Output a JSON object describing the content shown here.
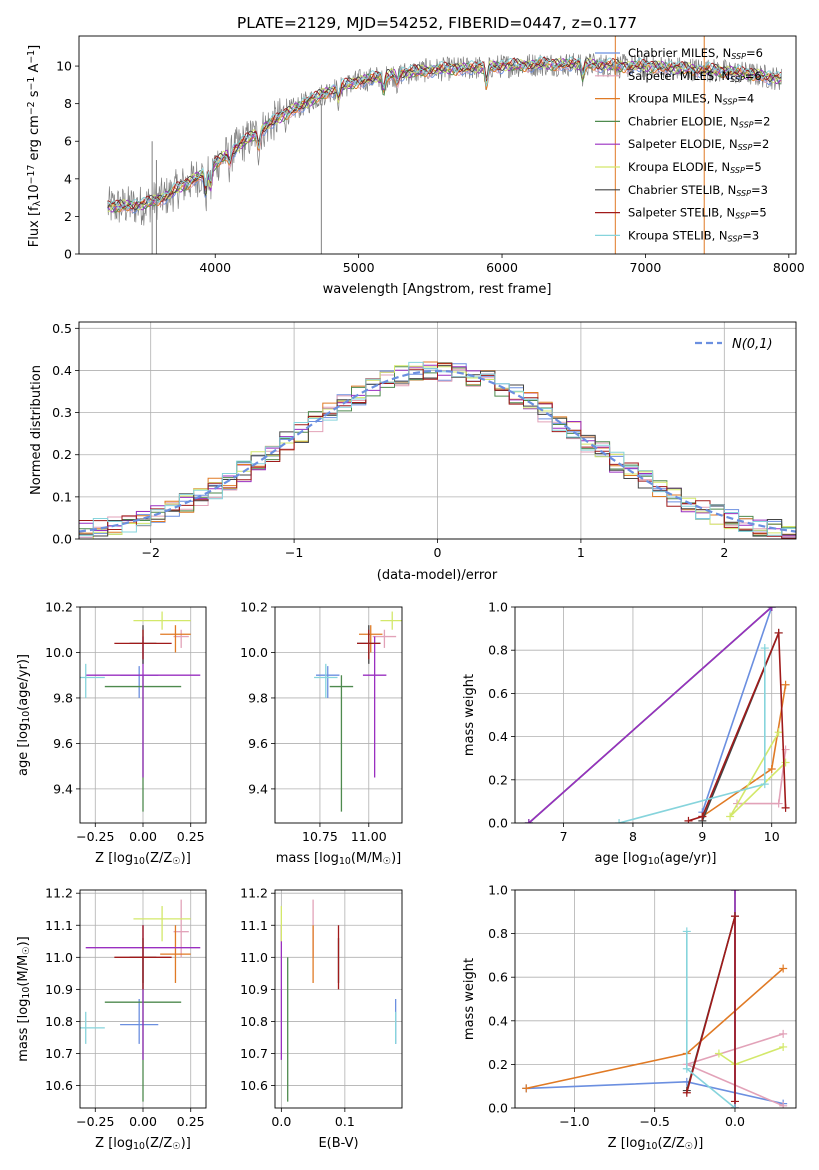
{
  "title": "PLATE=2129, MJD=54252, FIBERID=0447, z=0.177",
  "colors": {
    "Chabrier MILES": "#6b8fe0",
    "Salpeter MILES": "#e2a2b8",
    "Kroupa MILES": "#e07a25",
    "Chabrier ELODIE": "#4e8a4e",
    "Salpeter ELODIE": "#9a2fc0",
    "Kroupa ELODIE": "#d3e86a",
    "Chabrier STELIB": "#444444",
    "Salpeter STELIB": "#a01a1a",
    "Kroupa STELIB": "#86d4dc",
    "data": "#808080",
    "gauss": "#6b8fe0",
    "grid": "#b0b0b0"
  },
  "chart_data": [
    {
      "type": "line",
      "panel": "spectrum",
      "xlabel": "wavelength [Angstrom, rest frame]",
      "ylabel": "Flux [f$_\\lambda$10$^{-17}$ erg cm$^{-2}$ s$^{-1}$ A$^{-1}$]",
      "ylabel_parts": [
        "Flux [f",
        "λ",
        "10",
        "−17",
        " erg cm",
        "−2",
        " s",
        "−1",
        " A",
        "−1",
        "]"
      ],
      "xlim": [
        3050,
        8050
      ],
      "ylim": [
        0,
        11.6
      ],
      "xticks": [
        4000,
        5000,
        6000,
        7000,
        8000
      ],
      "yticks": [
        0,
        2,
        4,
        6,
        8,
        10
      ],
      "legend_position": "upper right",
      "legend": [
        {
          "name": "Chabrier MILES",
          "nssp": "6"
        },
        {
          "name": "Salpeter MILES",
          "nssp": "6"
        },
        {
          "name": "Kroupa MILES",
          "nssp": "4"
        },
        {
          "name": "Chabrier ELODIE",
          "nssp": "2"
        },
        {
          "name": "Salpeter ELODIE",
          "nssp": "2"
        },
        {
          "name": "Kroupa ELODIE",
          "nssp": "5"
        },
        {
          "name": "Chabrier STELIB",
          "nssp": "3"
        },
        {
          "name": "Salpeter STELIB",
          "nssp": "5"
        },
        {
          "name": "Kroupa STELIB",
          "nssp": "3"
        }
      ],
      "nssp_label": "N",
      "nssp_sub": "SSP",
      "continuum": {
        "x": [
          3250,
          3500,
          3700,
          3900,
          4100,
          4300,
          4500,
          4800,
          5000,
          5200,
          5500,
          5800,
          6000,
          6300,
          6600,
          6800,
          7000,
          7200,
          7400,
          7600,
          7800,
          7950
        ],
        "y": [
          2.6,
          2.7,
          3.3,
          4.2,
          5.4,
          6.5,
          7.5,
          8.7,
          9.2,
          9.5,
          9.8,
          9.9,
          10.0,
          10.1,
          10.1,
          10.0,
          10.0,
          9.9,
          9.8,
          9.7,
          9.5,
          9.3
        ]
      }
    },
    {
      "type": "line",
      "panel": "residuals",
      "xlabel": "(data-model)/error",
      "ylabel": "Normed distribution",
      "xlim": [
        -2.5,
        2.5
      ],
      "ylim": [
        0,
        0.515
      ],
      "xticks": [
        -2,
        -1,
        0,
        1,
        2
      ],
      "yticks": [
        0.0,
        0.1,
        0.2,
        0.3,
        0.4,
        0.5
      ],
      "legend": "N(0,1)",
      "legend_position": "upper right",
      "bin_width": 0.1,
      "note_values": "normal pdf, mean 0, sigma 1"
    },
    {
      "type": "scatter",
      "panel": "age-vs-Z",
      "xlabel": "Z [log10(Z/Z☉)]",
      "ylabel": "age  [log10(age/yr)]",
      "xlim": [
        -0.33,
        0.33
      ],
      "ylim": [
        9.25,
        10.2
      ],
      "xticks": [
        -0.25,
        0.0,
        0.25
      ],
      "yticks": [
        9.4,
        9.6,
        9.8,
        10.0,
        10.2
      ]
    },
    {
      "type": "scatter",
      "panel": "age-vs-mass",
      "xlabel": "mass [log10(M/M☉)]",
      "xlim": [
        10.52,
        11.17
      ],
      "ylim": [
        9.25,
        10.2
      ],
      "xticks": [
        10.75,
        11.0
      ],
      "yticks": [
        9.4,
        9.6,
        9.8,
        10.0,
        10.2
      ]
    },
    {
      "type": "line",
      "panel": "weight-vs-age",
      "xlabel": "age  [log10(age/yr)]",
      "ylabel": "mass weight",
      "xlim": [
        6.3,
        10.35
      ],
      "ylim": [
        0,
        1
      ],
      "xticks": [
        7,
        8,
        9,
        10
      ],
      "yticks": [
        0.0,
        0.2,
        0.4,
        0.6,
        0.8,
        1.0
      ]
    },
    {
      "type": "scatter",
      "panel": "mass-vs-Z",
      "xlabel": "Z [log10(Z/Z☉)]",
      "ylabel": "mass [log10(M/M☉)]",
      "xlim": [
        -0.33,
        0.33
      ],
      "ylim": [
        10.53,
        11.21
      ],
      "xticks": [
        -0.25,
        0.0,
        0.25
      ],
      "yticks": [
        10.6,
        10.7,
        10.8,
        10.9,
        11.0,
        11.1,
        11.2
      ]
    },
    {
      "type": "scatter",
      "panel": "mass-vs-EBV",
      "xlabel": "E(B-V)",
      "xlim": [
        -0.01,
        0.19
      ],
      "ylim": [
        10.53,
        11.21
      ],
      "xticks": [
        0.0,
        0.1
      ],
      "yticks": [
        10.6,
        10.7,
        10.8,
        10.9,
        11.0,
        11.1,
        11.2
      ]
    },
    {
      "type": "line",
      "panel": "weight-vs-Z",
      "xlabel": "Z [log10(Z/Z☉)]",
      "ylabel": "mass weight",
      "xlim": [
        -1.37,
        0.38
      ],
      "ylim": [
        0,
        1
      ],
      "xticks": [
        -1.0,
        -0.5,
        0.0
      ],
      "yticks": [
        0.0,
        0.2,
        0.4,
        0.6,
        0.8,
        1.0
      ]
    }
  ],
  "fits": [
    {
      "name": "Chabrier MILES",
      "Z": [
        -0.02,
        0.1
      ],
      "age": [
        9.9,
        9.8,
        9.94
      ],
      "mass": [
        10.79,
        10.73,
        10.87
      ],
      "ebv": 0.18,
      "age_w": [
        [
          6.5,
          0.0
        ],
        [
          10.0,
          1.0
        ],
        [
          9.0,
          0.05
        ]
      ],
      "Z_w": [
        [
          -1.3,
          0.09
        ],
        [
          -0.3,
          0.12
        ],
        [
          0.3,
          0.02
        ]
      ]
    },
    {
      "name": "Salpeter MILES",
      "Z": [
        0.2,
        0.04
      ],
      "age": [
        10.07,
        10.02,
        10.1
      ],
      "mass": [
        11.08,
        11.0,
        11.18
      ],
      "ebv": 0.05,
      "age_w": [
        [
          10.2,
          0.34
        ],
        [
          10.1,
          0.09
        ],
        [
          9.5,
          0.09
        ]
      ],
      "Z_w": [
        [
          0.3,
          0.34
        ],
        [
          -0.3,
          0.2
        ],
        [
          0.3,
          0.01
        ]
      ]
    },
    {
      "name": "Kroupa MILES",
      "Z": [
        0.17,
        0.08
      ],
      "age": [
        10.08,
        10.0,
        10.12
      ],
      "mass": [
        11.01,
        10.92,
        11.1
      ],
      "ebv": 0.05,
      "age_w": [
        [
          10.2,
          0.64
        ],
        [
          10.0,
          0.25
        ],
        [
          9.0,
          0.03
        ]
      ],
      "Z_w": [
        [
          0.3,
          0.64
        ],
        [
          -0.3,
          0.25
        ],
        [
          -1.3,
          0.09
        ]
      ]
    },
    {
      "name": "Chabrier ELODIE",
      "Z": [
        0.0,
        0.2
      ],
      "age": [
        9.85,
        9.3,
        9.9
      ],
      "mass": [
        10.86,
        10.55,
        11.0
      ],
      "ebv": 0.01,
      "age_w": [
        [
          6.5,
          0.0
        ],
        [
          10.0,
          1.0
        ]
      ],
      "Z_w": [
        [
          0.0,
          1.0
        ],
        [
          0.0,
          0.0
        ]
      ]
    },
    {
      "name": "Salpeter ELODIE",
      "Z": [
        0.0,
        0.3
      ],
      "age": [
        9.9,
        9.45,
        10.07
      ],
      "mass": [
        11.03,
        10.68,
        11.1
      ],
      "ebv": 0.0,
      "age_w": [
        [
          6.5,
          0.0
        ],
        [
          10.0,
          1.0
        ]
      ],
      "Z_w": [
        [
          0.0,
          1.0
        ],
        [
          0.0,
          0.0
        ]
      ]
    },
    {
      "name": "Kroupa ELODIE",
      "Z": [
        0.1,
        0.15
      ],
      "age": [
        10.14,
        10.1,
        10.18
      ],
      "mass": [
        11.12,
        11.05,
        11.16
      ],
      "ebv": 0.0,
      "age_w": [
        [
          10.2,
          0.28
        ],
        [
          9.4,
          0.03
        ],
        [
          10.1,
          0.42
        ]
      ],
      "Z_w": [
        [
          0.3,
          0.28
        ],
        [
          0.0,
          0.2
        ],
        [
          -0.1,
          0.25
        ]
      ]
    },
    {
      "name": "Chabrier STELIB",
      "Z": [
        0.0,
        0.07
      ],
      "age": [
        10.04,
        9.95,
        10.12
      ],
      "mass": [
        11.0,
        10.92,
        11.06
      ],
      "ebv": 0.09,
      "age_w": [
        [
          10.1,
          0.88
        ],
        [
          9.0,
          0.01
        ]
      ],
      "Z_w": [
        [
          0.0,
          0.88
        ],
        [
          -0.3,
          0.08
        ]
      ]
    },
    {
      "name": "Salpeter STELIB",
      "Z": [
        0.0,
        0.15
      ],
      "age": [
        10.04,
        9.97,
        10.1
      ],
      "mass": [
        11.0,
        10.9,
        11.1
      ],
      "ebv": 0.09,
      "age_w": [
        [
          10.2,
          0.07
        ],
        [
          10.1,
          0.88
        ],
        [
          9.0,
          0.03
        ],
        [
          8.8,
          0.01
        ]
      ],
      "Z_w": [
        [
          0.0,
          0.03
        ],
        [
          0.0,
          0.88
        ],
        [
          -0.3,
          0.07
        ]
      ]
    },
    {
      "name": "Kroupa STELIB",
      "Z": [
        -0.3,
        0.1
      ],
      "age": [
        9.89,
        9.8,
        9.95
      ],
      "mass": [
        10.78,
        10.73,
        10.83
      ],
      "ebv": 0.18,
      "age_w": [
        [
          9.9,
          0.81
        ],
        [
          9.9,
          0.18
        ],
        [
          7.8,
          0.0
        ]
      ],
      "Z_w": [
        [
          -0.3,
          0.81
        ],
        [
          -0.3,
          0.18
        ],
        [
          0.0,
          0.0
        ]
      ]
    }
  ]
}
